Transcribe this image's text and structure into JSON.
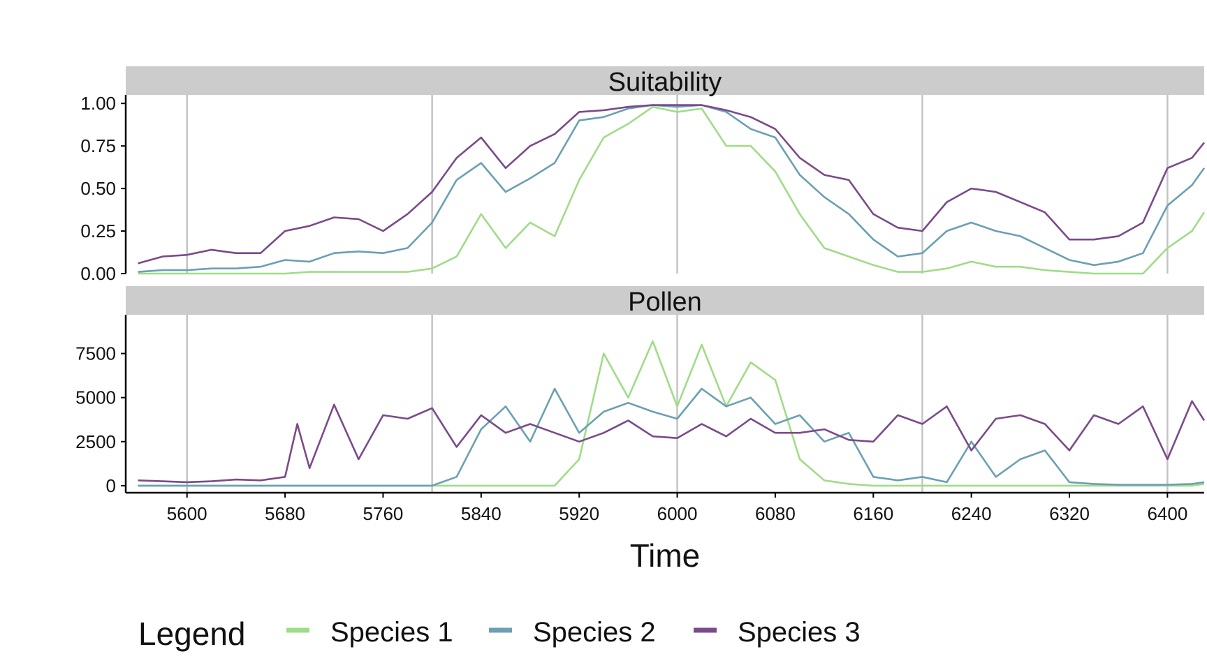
{
  "chart_data": {
    "type": "line",
    "xlabel": "Time",
    "xlim": [
      5550,
      6430
    ],
    "x_ticks": [
      "5600",
      "5680",
      "5760",
      "5840",
      "5920",
      "6000",
      "6080",
      "6160",
      "6240",
      "6320",
      "6400"
    ],
    "vlines": [
      5600,
      5800,
      6000,
      6200,
      6400
    ],
    "grid": false,
    "legend": {
      "title": "Legend",
      "position": "bottom",
      "entries": [
        {
          "name": "Species 1",
          "color": "#a0dc87"
        },
        {
          "name": "Species 2",
          "color": "#6aa0b2"
        },
        {
          "name": "Species 3",
          "color": "#7a4a8a"
        }
      ]
    },
    "panels": [
      {
        "title": "Suitability",
        "ylim": [
          0,
          1.05
        ],
        "y_ticks": [
          "0.00",
          "0.25",
          "0.50",
          "0.75",
          "1.00"
        ],
        "x": [
          5560,
          5580,
          5600,
          5620,
          5640,
          5660,
          5680,
          5700,
          5720,
          5740,
          5760,
          5780,
          5800,
          5820,
          5840,
          5860,
          5880,
          5900,
          5920,
          5940,
          5960,
          5980,
          6000,
          6020,
          6040,
          6060,
          6080,
          6100,
          6120,
          6140,
          6160,
          6180,
          6200,
          6220,
          6240,
          6260,
          6280,
          6300,
          6320,
          6340,
          6360,
          6380,
          6400,
          6420,
          6430
        ],
        "series": [
          {
            "name": "Species 1",
            "values": [
              0.0,
              0.0,
              0.0,
              0.0,
              0.0,
              0.0,
              0.0,
              0.01,
              0.01,
              0.01,
              0.01,
              0.01,
              0.03,
              0.1,
              0.35,
              0.15,
              0.3,
              0.22,
              0.55,
              0.8,
              0.88,
              0.98,
              0.95,
              0.97,
              0.75,
              0.75,
              0.6,
              0.35,
              0.15,
              0.1,
              0.05,
              0.01,
              0.01,
              0.03,
              0.07,
              0.04,
              0.04,
              0.02,
              0.01,
              0.0,
              0.0,
              0.0,
              0.15,
              0.25,
              0.36
            ]
          },
          {
            "name": "Species 2",
            "values": [
              0.01,
              0.02,
              0.02,
              0.03,
              0.03,
              0.04,
              0.08,
              0.07,
              0.12,
              0.13,
              0.12,
              0.15,
              0.3,
              0.55,
              0.65,
              0.48,
              0.56,
              0.65,
              0.9,
              0.92,
              0.97,
              0.99,
              0.98,
              0.99,
              0.95,
              0.85,
              0.8,
              0.58,
              0.45,
              0.35,
              0.2,
              0.1,
              0.12,
              0.25,
              0.3,
              0.25,
              0.22,
              0.15,
              0.08,
              0.05,
              0.07,
              0.12,
              0.4,
              0.52,
              0.62
            ]
          },
          {
            "name": "Species 3",
            "values": [
              0.06,
              0.1,
              0.11,
              0.14,
              0.12,
              0.12,
              0.25,
              0.28,
              0.33,
              0.32,
              0.25,
              0.35,
              0.48,
              0.68,
              0.8,
              0.62,
              0.75,
              0.82,
              0.95,
              0.96,
              0.98,
              0.99,
              0.99,
              0.99,
              0.96,
              0.92,
              0.85,
              0.68,
              0.58,
              0.55,
              0.35,
              0.27,
              0.25,
              0.42,
              0.5,
              0.48,
              0.42,
              0.36,
              0.2,
              0.2,
              0.22,
              0.3,
              0.62,
              0.68,
              0.77
            ]
          }
        ]
      },
      {
        "title": "Pollen",
        "ylim": [
          -400,
          9700
        ],
        "y_ticks": [
          "0",
          "2500",
          "5000",
          "7500"
        ],
        "x": [
          5560,
          5580,
          5600,
          5620,
          5640,
          5660,
          5680,
          5690,
          5700,
          5720,
          5740,
          5760,
          5780,
          5800,
          5820,
          5840,
          5860,
          5880,
          5900,
          5920,
          5940,
          5960,
          5980,
          6000,
          6020,
          6040,
          6060,
          6080,
          6100,
          6120,
          6140,
          6160,
          6180,
          6200,
          6220,
          6240,
          6260,
          6280,
          6300,
          6320,
          6340,
          6360,
          6380,
          6400,
          6420,
          6430
        ],
        "series": [
          {
            "name": "Species 1",
            "values": [
              0,
              0,
              0,
              0,
              0,
              0,
              0,
              0,
              0,
              0,
              0,
              0,
              0,
              0,
              0,
              0,
              0,
              0,
              0,
              1500,
              7500,
              5000,
              8200,
              4500,
              8000,
              4500,
              7000,
              6000,
              1500,
              300,
              100,
              0,
              0,
              0,
              0,
              0,
              0,
              0,
              0,
              0,
              0,
              0,
              0,
              0,
              0,
              100
            ]
          },
          {
            "name": "Species 2",
            "values": [
              0,
              0,
              0,
              0,
              0,
              0,
              0,
              0,
              0,
              0,
              0,
              0,
              0,
              0,
              500,
              3200,
              4500,
              2500,
              5500,
              3000,
              4200,
              4700,
              4200,
              3800,
              5500,
              4500,
              5000,
              3500,
              4000,
              2500,
              3000,
              500,
              300,
              500,
              200,
              2500,
              500,
              1500,
              2000,
              200,
              100,
              50,
              50,
              50,
              100,
              200
            ]
          },
          {
            "name": "Species 3",
            "values": [
              300,
              250,
              200,
              250,
              350,
              300,
              500,
              3500,
              1000,
              4600,
              1500,
              4000,
              3800,
              4400,
              2200,
              4000,
              3000,
              3500,
              3000,
              2500,
              3000,
              3700,
              2800,
              2700,
              3500,
              2800,
              3800,
              3000,
              3000,
              3200,
              2600,
              2500,
              4000,
              3500,
              4500,
              2000,
              3800,
              4000,
              3500,
              2000,
              4000,
              3500,
              4500,
              1500,
              4800,
              3700
            ]
          }
        ]
      }
    ]
  }
}
